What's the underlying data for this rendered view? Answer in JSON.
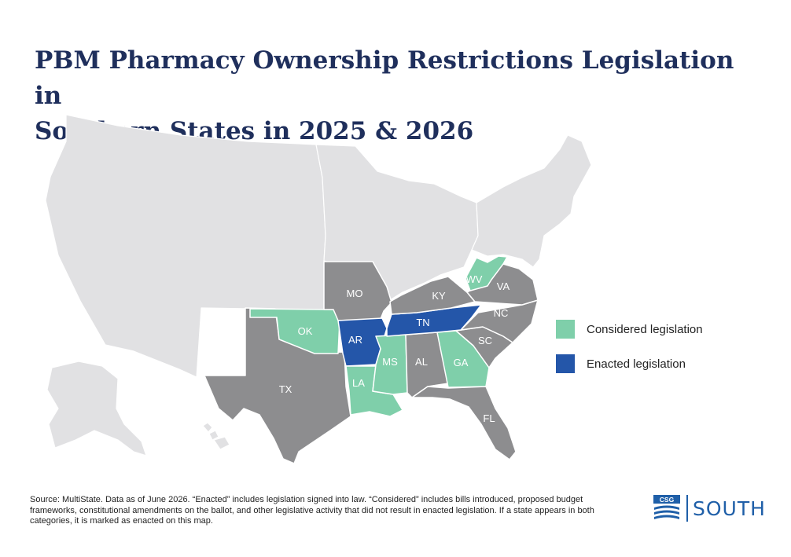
{
  "title": {
    "line1": "PBM Pharmacy Ownership Restrictions Legislation in",
    "line2": "Southern States in 2025 & 2026"
  },
  "colors": {
    "considered": "#7fcfaa",
    "enacted": "#2456a9",
    "southern_other": "#8d8d8f",
    "other_states": "#e1e1e3",
    "border": "#ffffff",
    "title": "#1f2f5c",
    "logo": "#1f5fa8"
  },
  "legend": [
    {
      "label": "Considered legislation",
      "status": "considered"
    },
    {
      "label": "Enacted legislation",
      "status": "enacted"
    }
  ],
  "states": [
    {
      "abbr": "AR",
      "status": "enacted"
    },
    {
      "abbr": "TN",
      "status": "enacted"
    },
    {
      "abbr": "OK",
      "status": "considered"
    },
    {
      "abbr": "LA",
      "status": "considered"
    },
    {
      "abbr": "MS",
      "status": "considered"
    },
    {
      "abbr": "GA",
      "status": "considered"
    },
    {
      "abbr": "WV",
      "status": "considered"
    },
    {
      "abbr": "TX",
      "status": "none"
    },
    {
      "abbr": "MO",
      "status": "none"
    },
    {
      "abbr": "KY",
      "status": "none"
    },
    {
      "abbr": "VA",
      "status": "none"
    },
    {
      "abbr": "NC",
      "status": "none"
    },
    {
      "abbr": "SC",
      "status": "none"
    },
    {
      "abbr": "AL",
      "status": "none"
    },
    {
      "abbr": "FL",
      "status": "none"
    }
  ],
  "source": "Source: MultiState. Data as of June 2026. “Enacted” includes legislation signed into law. “Considered” includes bills introduced, proposed budget frameworks, constitutional amendments on the ballot, and other legislative activity that did not result in enacted legislation. If a state appears in both categories, it is marked as enacted on this map.",
  "logo": {
    "badge": "CSG",
    "text": "SOUTH"
  }
}
